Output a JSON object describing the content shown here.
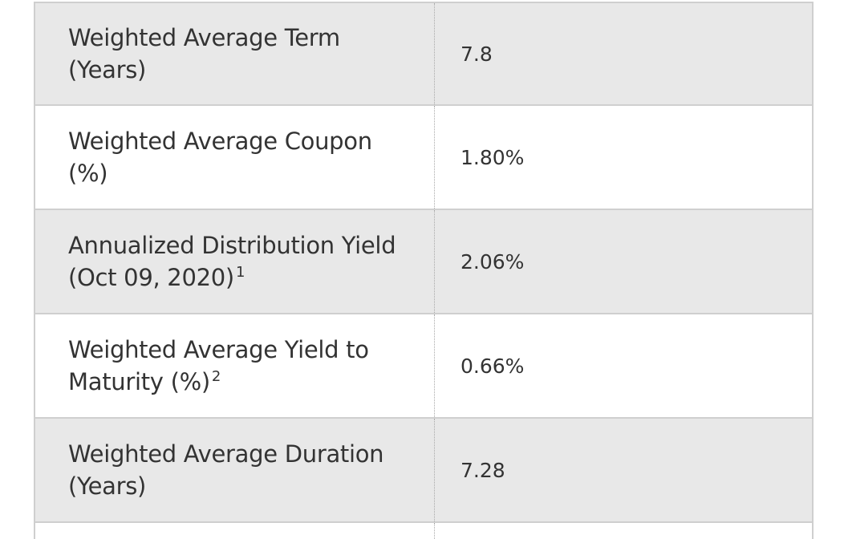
{
  "table": {
    "rows": [
      {
        "label": "Weighted Average Term (Years)",
        "note": "",
        "value": "7.8"
      },
      {
        "label": "Weighted Average Coupon (%)",
        "note": "",
        "value": "1.80%"
      },
      {
        "label": "Annualized Distribution Yield (Oct 09, 2020)",
        "note": "1",
        "value": "2.06%"
      },
      {
        "label": "Weighted Average Yield to Maturity (%)",
        "note": "2",
        "value": "0.66%"
      },
      {
        "label": "Weighted Average Duration (Years)",
        "note": "",
        "value": "7.28"
      }
    ]
  }
}
